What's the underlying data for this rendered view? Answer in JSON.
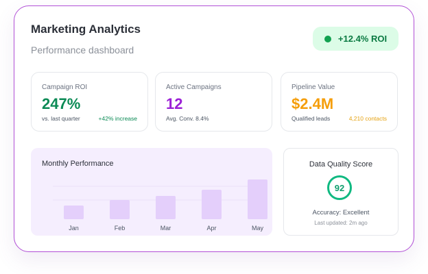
{
  "header": {
    "title": "Marketing Analytics",
    "subtitle": "Performance dashboard",
    "roi_badge": "+12.4% ROI",
    "roi_badge_color": "#12a150"
  },
  "stats": [
    {
      "label": "Campaign ROI",
      "value": "247%",
      "note": "vs. last quarter",
      "note_right": "+42% increase",
      "color": "#0b8a55",
      "note_right_color": "#0b8a55"
    },
    {
      "label": "Active Campaigns",
      "value": "12",
      "note": "Avg. Conv. 8.4%",
      "note_right": "",
      "color": "#9b1fd6",
      "note_right_color": ""
    },
    {
      "label": "Pipeline Value",
      "value": "$2.4M",
      "note": "Qualified leads",
      "note_right": "4,210 contacts",
      "color": "#f59e0b",
      "note_right_color": "#f59e0b"
    }
  ],
  "performance": {
    "title": "Monthly Performance"
  },
  "chart_data": {
    "type": "bar",
    "categories": [
      "Jan",
      "Feb",
      "Mar",
      "Apr",
      "May"
    ],
    "values": [
      20,
      28,
      34,
      43,
      58
    ],
    "ylim": [
      0,
      64
    ],
    "grid": true,
    "bar_color": "#e4cffb"
  },
  "quality": {
    "title": "Data Quality Score",
    "score": "92",
    "accuracy": "Accuracy: Excellent",
    "updated": "Last updated: 2m ago",
    "ring_color": "#10b981"
  }
}
